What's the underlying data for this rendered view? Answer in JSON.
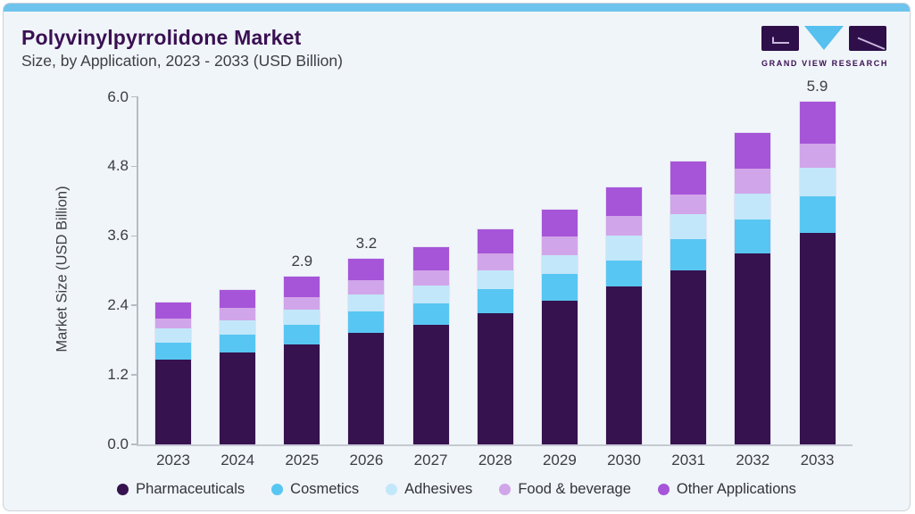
{
  "header": {
    "title": "Polyvinylpyrrolidone Market",
    "subtitle": "Size, by Application, 2023 - 2033 (USD Billion)"
  },
  "logo": {
    "text": "GRAND VIEW RESEARCH",
    "mark_dark_color": "#2f0f49",
    "mark_triangle_color": "#56c0ef"
  },
  "chart_data": {
    "type": "bar",
    "stacked": true,
    "title": "Polyvinylpyrrolidone Market Size, by Application, 2023 - 2033 (USD Billion)",
    "categories": [
      "2023",
      "2024",
      "2025",
      "2026",
      "2027",
      "2028",
      "2029",
      "2030",
      "2031",
      "2032",
      "2033"
    ],
    "series": [
      {
        "name": "Pharmaceuticals",
        "color": "#36124e",
        "values": [
          1.47,
          1.59,
          1.73,
          1.92,
          2.07,
          2.26,
          2.48,
          2.72,
          3.0,
          3.3,
          3.65
        ]
      },
      {
        "name": "Cosmetics",
        "color": "#58c6f2",
        "values": [
          0.28,
          0.3,
          0.34,
          0.37,
          0.37,
          0.42,
          0.46,
          0.46,
          0.54,
          0.58,
          0.63
        ]
      },
      {
        "name": "Adhesives",
        "color": "#c2e7fa",
        "values": [
          0.26,
          0.25,
          0.26,
          0.3,
          0.3,
          0.32,
          0.33,
          0.43,
          0.43,
          0.45,
          0.49
        ]
      },
      {
        "name": "Food & beverage",
        "color": "#d1a5e9",
        "values": [
          0.16,
          0.22,
          0.21,
          0.24,
          0.27,
          0.3,
          0.32,
          0.33,
          0.35,
          0.43,
          0.43
        ]
      },
      {
        "name": "Other Applications",
        "color": "#a655d8",
        "values": [
          0.28,
          0.31,
          0.36,
          0.37,
          0.4,
          0.42,
          0.47,
          0.5,
          0.57,
          0.62,
          0.71
        ]
      }
    ],
    "totals": [
      2.4,
      2.7,
      2.9,
      3.2,
      3.4,
      3.7,
      4.1,
      4.4,
      4.9,
      5.4,
      5.9
    ],
    "value_labels": [
      null,
      null,
      "2.9",
      "3.2",
      null,
      null,
      null,
      null,
      null,
      null,
      "5.9"
    ],
    "xlabel": "",
    "ylabel": "Market Size (USD Billion)",
    "yticks": [
      "0.0",
      "1.2",
      "2.4",
      "3.6",
      "4.8",
      "6.0"
    ],
    "ylim": [
      0,
      6
    ],
    "grid": false,
    "legend_position": "bottom"
  },
  "colors": {
    "accent_bar": "#6ec4ed",
    "card_background": "#f0f5f9",
    "title_text": "#3a1053",
    "body_text": "#3c3c45",
    "axis_line": "#b6bbc5"
  }
}
